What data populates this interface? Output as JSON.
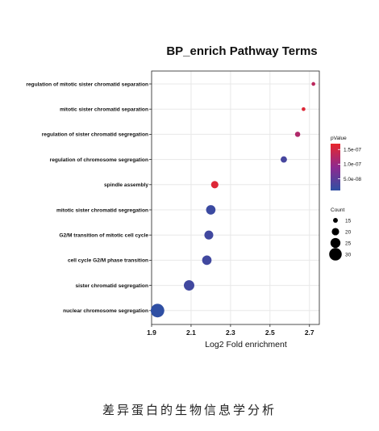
{
  "chart_data": {
    "type": "scatter",
    "title": "BP_enrich Pathway Terms",
    "xlabel": "Log2 Fold enrichment",
    "ylabel": "",
    "xlim": [
      1.9,
      2.75
    ],
    "x_ticks": [
      "1.9",
      "2.1",
      "2.3",
      "2.5",
      "2.7"
    ],
    "grid": true,
    "legend_position": "right",
    "categories": [
      "regulation of mitotic sister chromatid separation",
      "mitotic sister chromatid separation",
      "regulation of sister chromatid segregation",
      "regulation of chromosome segregation",
      "spindle assembly",
      "mitotic sister chromatid segregation",
      "G2/M transition of mitotic cell cycle",
      "cell cycle G2/M phase transition",
      "sister chromatid segregation",
      "nuclear chromosome segregation"
    ],
    "x": [
      2.72,
      2.67,
      2.64,
      2.57,
      2.22,
      2.2,
      2.19,
      2.18,
      2.09,
      1.93
    ],
    "count": [
      13,
      13,
      16,
      18,
      20,
      24,
      23,
      24,
      26,
      32
    ],
    "pvalue": [
      1.3e-07,
      1.6e-07,
      1.2e-07,
      3e-08,
      1.6e-07,
      2e-08,
      2.5e-08,
      2.5e-08,
      2.5e-08,
      1e-08
    ],
    "color_legend": {
      "title": "pValue",
      "ticks": [
        "1.5e-07",
        "1.0e-07",
        "5.0e-08"
      ],
      "tick_values": [
        1.5e-07,
        1e-07,
        5e-08
      ],
      "range": [
        1e-08,
        1.7e-07
      ],
      "low_color": "#2f4fa3",
      "high_color": "#e8262b"
    },
    "size_legend": {
      "title": "Count",
      "values": [
        15,
        20,
        25,
        30
      ]
    }
  },
  "caption": "差异蛋白的生物信息学分析"
}
